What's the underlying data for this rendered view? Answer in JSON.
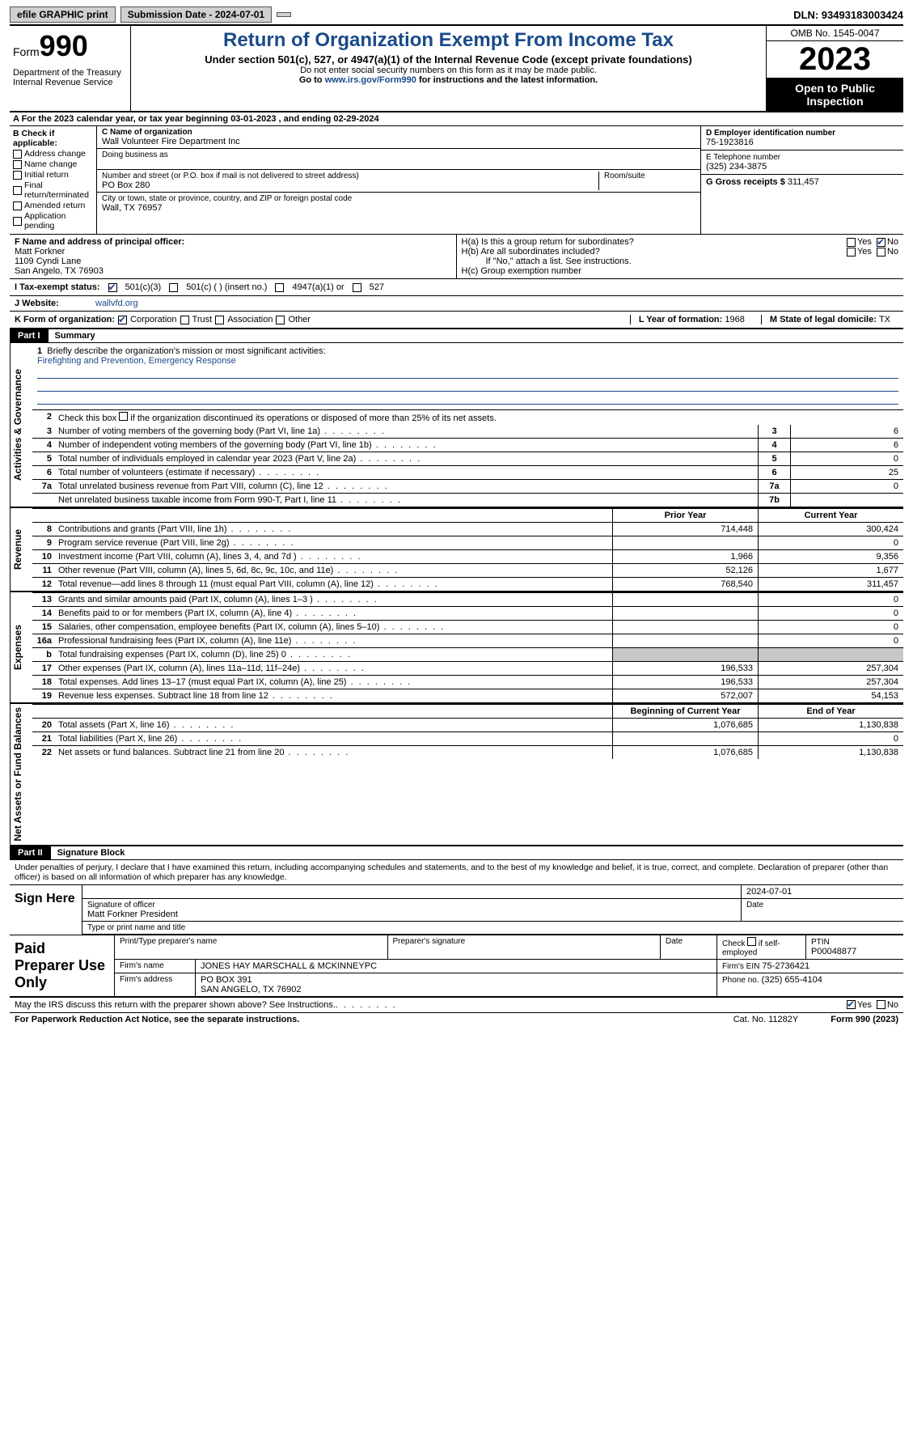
{
  "topbar": {
    "efile": "efile GRAPHIC print",
    "submission": "Submission Date - 2024-07-01",
    "dln": "DLN: 93493183003424"
  },
  "header": {
    "form_prefix": "Form",
    "form_number": "990",
    "title": "Return of Organization Exempt From Income Tax",
    "subtitle": "Under section 501(c), 527, or 4947(a)(1) of the Internal Revenue Code (except private foundations)",
    "note1": "Do not enter social security numbers on this form as it may be made public.",
    "note2_pre": "Go to ",
    "note2_link": "www.irs.gov/Form990",
    "note2_post": " for instructions and the latest information.",
    "dept": "Department of the Treasury\nInternal Revenue Service",
    "omb": "OMB No. 1545-0047",
    "year": "2023",
    "open": "Open to Public Inspection"
  },
  "line_a": "A For the 2023 calendar year, or tax year beginning 03-01-2023   , and ending 02-29-2024",
  "box_b": {
    "header": "B Check if applicable:",
    "items": [
      "Address change",
      "Name change",
      "Initial return",
      "Final return/terminated",
      "Amended return",
      "Application pending"
    ]
  },
  "box_c": {
    "name_lbl": "C Name of organization",
    "name": "Wall Volunteer Fire Department Inc",
    "dba_lbl": "Doing business as",
    "dba": "",
    "addr_lbl": "Number and street (or P.O. box if mail is not delivered to street address)",
    "addr": "PO Box 280",
    "room_lbl": "Room/suite",
    "city_lbl": "City or town, state or province, country, and ZIP or foreign postal code",
    "city": "Wall, TX  76957"
  },
  "box_d": {
    "lbl": "D Employer identification number",
    "val": "75-1923816"
  },
  "box_e": {
    "lbl": "E Telephone number",
    "val": "(325) 234-3875"
  },
  "box_g": {
    "lbl": "G Gross receipts $ ",
    "val": "311,457"
  },
  "box_f": {
    "lbl": "F  Name and address of principal officer:",
    "name": "Matt Forkner",
    "addr1": "1109 Cyndi Lane",
    "addr2": "San Angelo, TX  76903"
  },
  "box_h": {
    "ha": "H(a)  Is this a group return for subordinates?",
    "hb": "H(b)  Are all subordinates included?",
    "hb_note": "If \"No,\" attach a list. See instructions.",
    "hc": "H(c)  Group exemption number"
  },
  "box_i": {
    "lbl": "I   Tax-exempt status:",
    "opts": [
      "501(c)(3)",
      "501(c) (  ) (insert no.)",
      "4947(a)(1) or",
      "527"
    ]
  },
  "box_j": {
    "lbl": "J   Website:",
    "val": "wallvfd.org"
  },
  "box_k": {
    "lbl": "K Form of organization:",
    "opts": [
      "Corporation",
      "Trust",
      "Association",
      "Other"
    ]
  },
  "box_l": {
    "lbl": "L Year of formation: ",
    "val": "1968"
  },
  "box_m": {
    "lbl": "M State of legal domicile: ",
    "val": "TX"
  },
  "part1": {
    "hdr": "Part I",
    "title": "Summary"
  },
  "briefly": {
    "num": "1",
    "text": "Briefly describe the organization's mission or most significant activities:",
    "mission": "Firefighting and Prevention, Emergency Response"
  },
  "line2": {
    "num": "2",
    "text": "Check this box          if the organization discontinued its operations or disposed of more than 25% of its net assets."
  },
  "governance": [
    {
      "n": "3",
      "d": "Number of voting members of the governing body (Part VI, line 1a)",
      "b": "3",
      "v": "6"
    },
    {
      "n": "4",
      "d": "Number of independent voting members of the governing body (Part VI, line 1b)",
      "b": "4",
      "v": "6"
    },
    {
      "n": "5",
      "d": "Total number of individuals employed in calendar year 2023 (Part V, line 2a)",
      "b": "5",
      "v": "0"
    },
    {
      "n": "6",
      "d": "Total number of volunteers (estimate if necessary)",
      "b": "6",
      "v": "25"
    },
    {
      "n": "7a",
      "d": "Total unrelated business revenue from Part VIII, column (C), line 12",
      "b": "7a",
      "v": "0"
    },
    {
      "n": "",
      "d": "Net unrelated business taxable income from Form 990-T, Part I, line 11",
      "b": "7b",
      "v": ""
    }
  ],
  "colhdrs": {
    "prior": "Prior Year",
    "current": "Current Year",
    "begin": "Beginning of Current Year",
    "end": "End of Year"
  },
  "revenue": [
    {
      "n": "8",
      "d": "Contributions and grants (Part VIII, line 1h)",
      "p": "714,448",
      "c": "300,424"
    },
    {
      "n": "9",
      "d": "Program service revenue (Part VIII, line 2g)",
      "p": "",
      "c": "0"
    },
    {
      "n": "10",
      "d": "Investment income (Part VIII, column (A), lines 3, 4, and 7d )",
      "p": "1,966",
      "c": "9,356"
    },
    {
      "n": "11",
      "d": "Other revenue (Part VIII, column (A), lines 5, 6d, 8c, 9c, 10c, and 11e)",
      "p": "52,126",
      "c": "1,677"
    },
    {
      "n": "12",
      "d": "Total revenue—add lines 8 through 11 (must equal Part VIII, column (A), line 12)",
      "p": "768,540",
      "c": "311,457"
    }
  ],
  "expenses": [
    {
      "n": "13",
      "d": "Grants and similar amounts paid (Part IX, column (A), lines 1–3 )",
      "p": "",
      "c": "0"
    },
    {
      "n": "14",
      "d": "Benefits paid to or for members (Part IX, column (A), line 4)",
      "p": "",
      "c": "0"
    },
    {
      "n": "15",
      "d": "Salaries, other compensation, employee benefits (Part IX, column (A), lines 5–10)",
      "p": "",
      "c": "0"
    },
    {
      "n": "16a",
      "d": "Professional fundraising fees (Part IX, column (A), line 11e)",
      "p": "",
      "c": "0"
    },
    {
      "n": "b",
      "d": "Total fundraising expenses (Part IX, column (D), line 25) 0",
      "p": "SHADE",
      "c": "SHADE"
    },
    {
      "n": "17",
      "d": "Other expenses (Part IX, column (A), lines 11a–11d, 11f–24e)",
      "p": "196,533",
      "c": "257,304"
    },
    {
      "n": "18",
      "d": "Total expenses. Add lines 13–17 (must equal Part IX, column (A), line 25)",
      "p": "196,533",
      "c": "257,304"
    },
    {
      "n": "19",
      "d": "Revenue less expenses. Subtract line 18 from line 12",
      "p": "572,007",
      "c": "54,153"
    }
  ],
  "netassets": [
    {
      "n": "20",
      "d": "Total assets (Part X, line 16)",
      "p": "1,076,685",
      "c": "1,130,838"
    },
    {
      "n": "21",
      "d": "Total liabilities (Part X, line 26)",
      "p": "",
      "c": "0"
    },
    {
      "n": "22",
      "d": "Net assets or fund balances. Subtract line 21 from line 20",
      "p": "1,076,685",
      "c": "1,130,838"
    }
  ],
  "vlabels": {
    "gov": "Activities & Governance",
    "rev": "Revenue",
    "exp": "Expenses",
    "net": "Net Assets or Fund Balances"
  },
  "part2": {
    "hdr": "Part II",
    "title": "Signature Block"
  },
  "penalties": "Under penalties of perjury, I declare that I have examined this return, including accompanying schedules and statements, and to the best of my knowledge and belief, it is true, correct, and complete. Declaration of preparer (other than officer) is based on all information of which preparer has any knowledge.",
  "sign": {
    "here": "Sign Here",
    "sig_lbl": "Signature of officer",
    "date_lbl": "Date",
    "date": "2024-07-01",
    "name": "Matt Forkner President",
    "type_lbl": "Type or print name and title"
  },
  "prep": {
    "left": "Paid Preparer Use Only",
    "h1": "Print/Type preparer's name",
    "h2": "Preparer's signature",
    "h3": "Date",
    "h4": "Check          if self-employed",
    "h5_lbl": "PTIN",
    "h5": "P00048877",
    "firm_lbl": "Firm's name",
    "firm": "JONES HAY MARSCHALL & MCKINNEYPC",
    "ein_lbl": "Firm's EIN",
    "ein": "75-2736421",
    "addr_lbl": "Firm's address",
    "addr1": "PO BOX 391",
    "addr2": "SAN ANGELO, TX  76902",
    "phone_lbl": "Phone no.",
    "phone": "(325) 655-4104"
  },
  "discuss": "May the IRS discuss this return with the preparer shown above? See Instructions.",
  "footer": {
    "pra": "For Paperwork Reduction Act Notice, see the separate instructions.",
    "cat": "Cat. No. 11282Y",
    "form": "Form 990 (2023)"
  },
  "yn": {
    "yes": "Yes",
    "no": "No"
  }
}
